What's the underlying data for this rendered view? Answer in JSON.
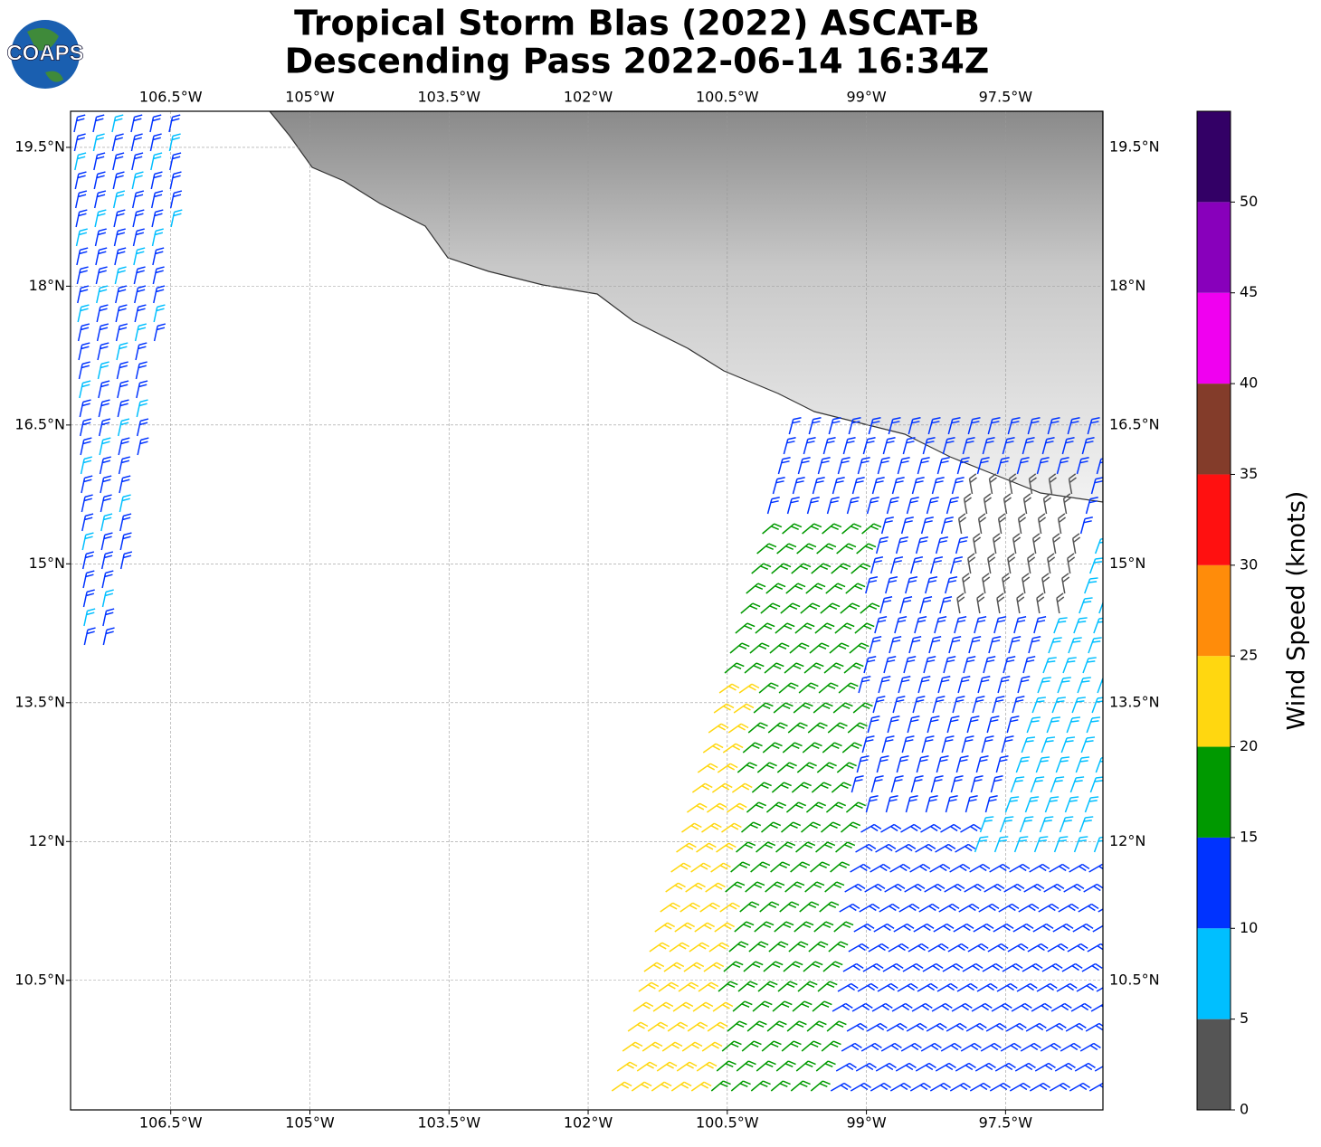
{
  "header": {
    "logo": "COAPS",
    "title": [
      "Tropical Storm Blas (2022) ASCAT-B",
      "Descending Pass 2022-06-14 16:34Z"
    ]
  },
  "map": {
    "lonlim": [
      -107.58,
      -96.45
    ],
    "latlim": [
      9.1,
      19.89
    ],
    "lon_ticks": [
      {
        "value": -106.5,
        "label": "106.5°W"
      },
      {
        "value": -105,
        "label": "105°W"
      },
      {
        "value": -103.5,
        "label": "103.5°W"
      },
      {
        "value": -102,
        "label": "102°W"
      },
      {
        "value": -100.5,
        "label": "100.5°W"
      },
      {
        "value": -99,
        "label": "99°W"
      },
      {
        "value": -97.5,
        "label": "97.5°W"
      }
    ],
    "lat_ticks": [
      {
        "value": 10.5,
        "label": "10.5°N"
      },
      {
        "value": 12,
        "label": "12°N"
      },
      {
        "value": 13.5,
        "label": "13.5°N"
      },
      {
        "value": 15,
        "label": "15°N"
      },
      {
        "value": 16.5,
        "label": "16.5°N"
      },
      {
        "value": 18,
        "label": "18°N"
      },
      {
        "value": 19.5,
        "label": "19.5°N"
      }
    ],
    "grid": true
  },
  "colorbar": {
    "label": "Wind Speed (knots)",
    "lim": [
      0,
      55
    ],
    "ticks": [
      0,
      5,
      10,
      15,
      20,
      25,
      30,
      35,
      40,
      45,
      50
    ],
    "colors": [
      "#555555",
      "#00bfff",
      "#0033ff",
      "#009900",
      "#ffd710",
      "#ff8c0a",
      "#ff1010",
      "#833c2a",
      "#f000f0",
      "#8800bb",
      "#330066"
    ]
  }
}
